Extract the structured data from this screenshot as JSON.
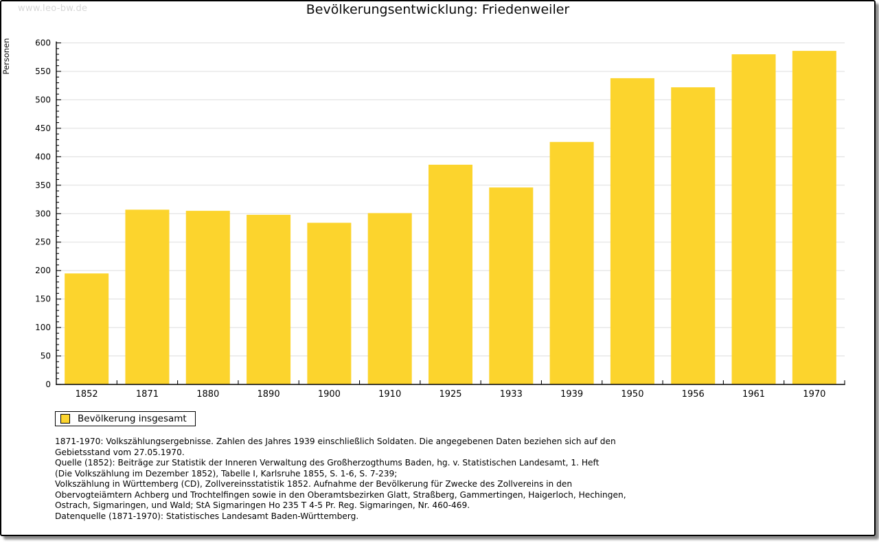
{
  "watermark": "www.leo-bw.de",
  "title": "Bevölkerungsentwicklung: Friedenweiler",
  "legend": {
    "label": "Bevölkerung insgesamt"
  },
  "chart_data": {
    "type": "bar",
    "title": "Bevölkerungsentwicklung: Friedenweiler",
    "xlabel": "",
    "ylabel": "Personen",
    "categories": [
      "1852",
      "1871",
      "1880",
      "1890",
      "1900",
      "1910",
      "1925",
      "1933",
      "1939",
      "1950",
      "1956",
      "1961",
      "1970"
    ],
    "series": [
      {
        "name": "Bevölkerung insgesamt",
        "values": [
          195,
          307,
          305,
          298,
          284,
          301,
          386,
          346,
          426,
          538,
          522,
          580,
          586
        ]
      }
    ],
    "ylim": [
      0,
      600
    ],
    "ytick_step": 50,
    "minor_tick_step": 10,
    "grid": true,
    "legend_position": "bottom-left",
    "bar_color": "#FCD42D",
    "grid_color": "#DDDDDD",
    "axis_color": "#000000"
  },
  "footnotes": [
    "1871-1970: Volkszählungsergebnisse. Zahlen des Jahres 1939 einschließlich Soldaten. Die angegebenen Daten beziehen sich auf den",
    "Gebietsstand vom 27.05.1970.",
    "Quelle (1852): Beiträge zur Statistik der Inneren Verwaltung des Großherzogthums Baden, hg. v. Statistischen Landesamt, 1. Heft",
    "(Die Volkszählung im Dezember 1852), Tabelle I, Karlsruhe 1855, S. 1-6, S. 7-239;",
    "Volkszählung in Württemberg (CD), Zollvereinsstatistik 1852. Aufnahme der Bevölkerung für Zwecke des Zollvereins in den",
    "Obervogteiämtern Achberg und Trochtelfingen sowie in den Oberamtsbezirken Glatt, Straßberg, Gammertingen, Haigerloch, Hechingen,",
    "Ostrach, Sigmaringen, und Wald; StA Sigmaringen Ho 235 T 4-5 Pr. Reg. Sigmaringen, Nr. 460-469."
  ],
  "datasource": "Datenquelle (1871-1970): Statistisches Landesamt Baden-Württemberg."
}
